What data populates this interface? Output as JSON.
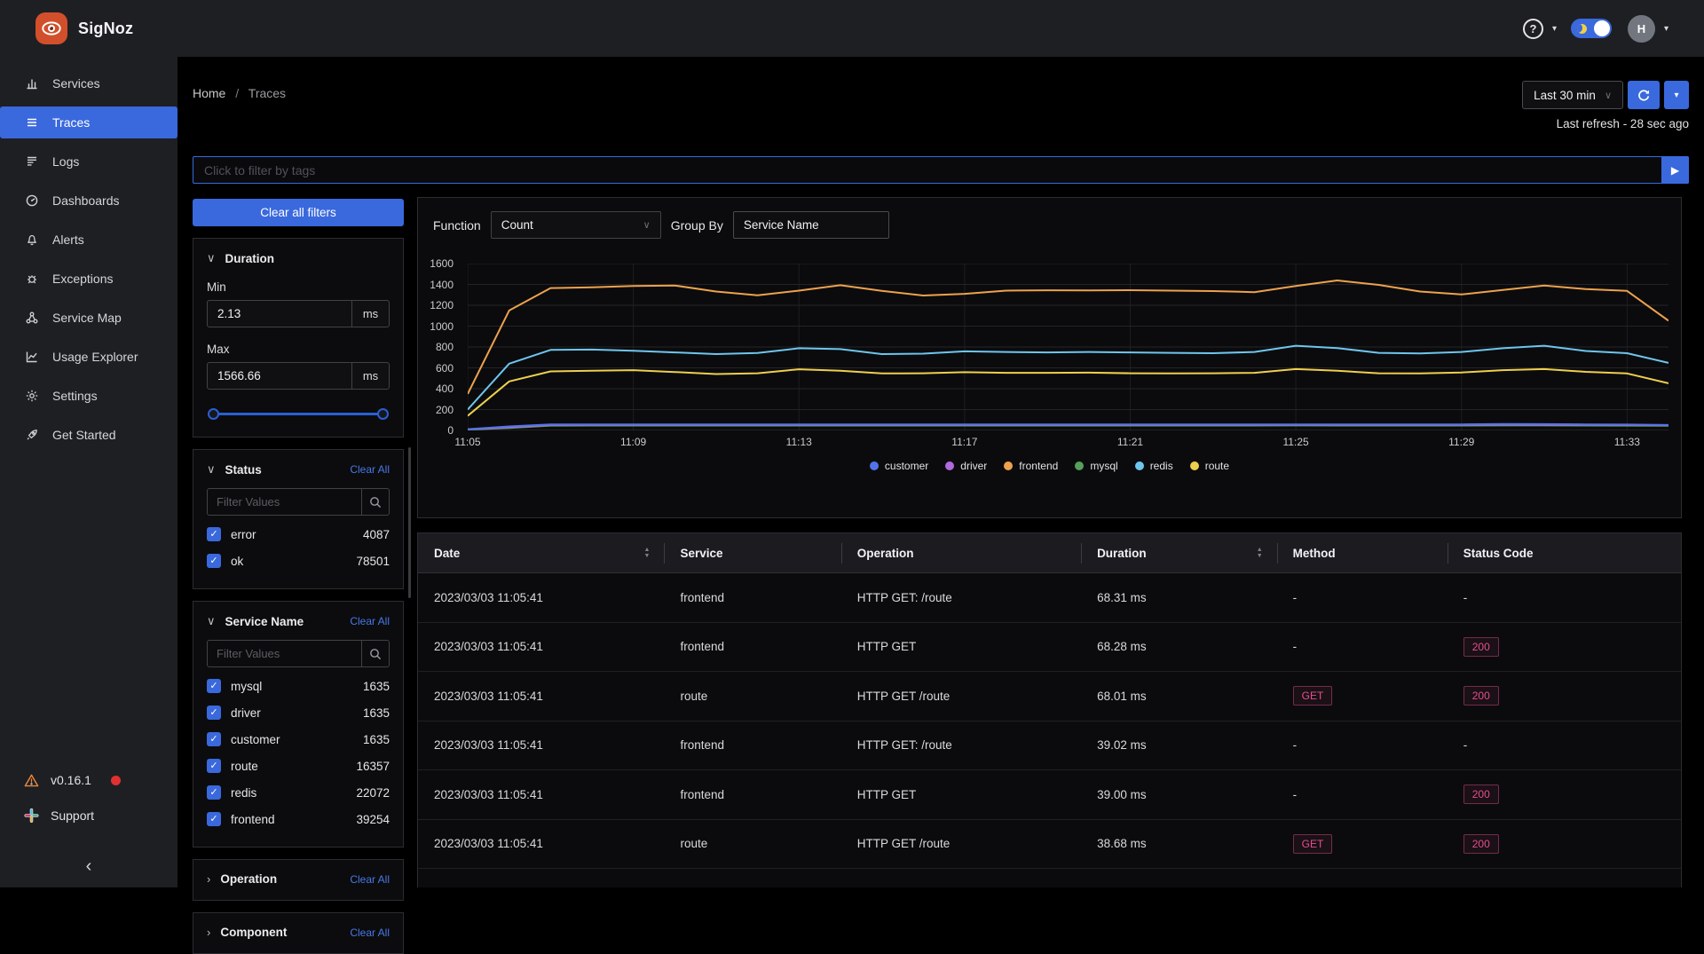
{
  "topbar": {
    "brand": "SigNoz",
    "avatar_initial": "H"
  },
  "sidebar": {
    "items": [
      {
        "label": "Services",
        "icon": "bar-chart",
        "active": false
      },
      {
        "label": "Traces",
        "icon": "list",
        "active": true
      },
      {
        "label": "Logs",
        "icon": "logs",
        "active": false
      },
      {
        "label": "Dashboards",
        "icon": "gauge",
        "active": false
      },
      {
        "label": "Alerts",
        "icon": "bell",
        "active": false
      },
      {
        "label": "Exceptions",
        "icon": "bug",
        "active": false
      },
      {
        "label": "Service Map",
        "icon": "graph",
        "active": false
      },
      {
        "label": "Usage Explorer",
        "icon": "trend",
        "active": false
      },
      {
        "label": "Settings",
        "icon": "gear",
        "active": false
      },
      {
        "label": "Get Started",
        "icon": "rocket",
        "active": false
      }
    ],
    "version": "v0.16.1",
    "support_label": "Support"
  },
  "header": {
    "breadcrumb": [
      "Home",
      "Traces"
    ],
    "breadcrumb_separator": "/",
    "time_range": "Last 30 min",
    "last_refresh": "Last refresh - 28 sec ago"
  },
  "filterbar": {
    "placeholder": "Click to filter by tags"
  },
  "filters": {
    "clear_all_filters": "Clear all filters",
    "clear_all": "Clear All",
    "filter_placeholder": "Filter Values",
    "duration": {
      "title": "Duration",
      "min_label": "Min",
      "min_value": "2.13",
      "max_label": "Max",
      "max_value": "1566.66",
      "unit": "ms"
    },
    "status": {
      "title": "Status",
      "items": [
        {
          "label": "error",
          "count": "4087"
        },
        {
          "label": "ok",
          "count": "78501"
        }
      ]
    },
    "service_name": {
      "title": "Service Name",
      "items": [
        {
          "label": "mysql",
          "count": "1635"
        },
        {
          "label": "driver",
          "count": "1635"
        },
        {
          "label": "customer",
          "count": "1635"
        },
        {
          "label": "route",
          "count": "16357"
        },
        {
          "label": "redis",
          "count": "22072"
        },
        {
          "label": "frontend",
          "count": "39254"
        }
      ]
    },
    "collapsed_sections": [
      "Operation",
      "Component"
    ]
  },
  "graph": {
    "function_label": "Function",
    "function_value": "Count",
    "group_by_label": "Group By",
    "group_by_value": "Service Name"
  },
  "chart_data": {
    "type": "line",
    "title": "",
    "xlabel": "",
    "ylabel": "",
    "ylim": [
      0,
      1600
    ],
    "yticks": [
      0,
      200,
      400,
      600,
      800,
      1000,
      1200,
      1400,
      1600
    ],
    "x_ticks": [
      "11:05",
      "11:09",
      "11:13",
      "11:17",
      "11:21",
      "11:25",
      "11:29",
      "11:33"
    ],
    "x_tick_indices": [
      0,
      4,
      8,
      12,
      16,
      20,
      24,
      28
    ],
    "x_point_count": 30,
    "grid": true,
    "legend_position": "bottom",
    "series": [
      {
        "name": "customer",
        "color": "#5273e8",
        "values": [
          12,
          38,
          57,
          58,
          58,
          58,
          58,
          58,
          58,
          58,
          58,
          58,
          58,
          58,
          58,
          58,
          58,
          58,
          58,
          58,
          58,
          58,
          58,
          58,
          58,
          62,
          60,
          58,
          56,
          52
        ]
      },
      {
        "name": "driver",
        "color": "#b169de",
        "values": [
          10,
          30,
          52,
          53,
          53,
          53,
          53,
          53,
          53,
          53,
          53,
          53,
          53,
          53,
          53,
          53,
          53,
          53,
          53,
          53,
          54,
          53,
          53,
          53,
          53,
          55,
          54,
          53,
          52,
          50
        ]
      },
      {
        "name": "frontend",
        "color": "#eda24d",
        "values": [
          350,
          1150,
          1365,
          1372,
          1385,
          1390,
          1332,
          1296,
          1340,
          1392,
          1338,
          1294,
          1310,
          1340,
          1344,
          1342,
          1345,
          1340,
          1336,
          1326,
          1385,
          1438,
          1396,
          1332,
          1304,
          1346,
          1390,
          1355,
          1338,
          1052
        ]
      },
      {
        "name": "mysql",
        "color": "#55a05a",
        "values": [
          8,
          24,
          46,
          47,
          47,
          47,
          47,
          47,
          47,
          47,
          47,
          47,
          47,
          47,
          47,
          47,
          47,
          47,
          47,
          47,
          48,
          47,
          47,
          47,
          47,
          48,
          48,
          47,
          46,
          44
        ]
      },
      {
        "name": "redis",
        "color": "#6ec6ee",
        "values": [
          200,
          640,
          772,
          775,
          764,
          748,
          732,
          742,
          788,
          780,
          732,
          736,
          758,
          752,
          748,
          752,
          748,
          744,
          740,
          752,
          812,
          790,
          744,
          738,
          752,
          788,
          812,
          762,
          740,
          648
        ]
      },
      {
        "name": "route",
        "color": "#eecf4e",
        "values": [
          140,
          470,
          566,
          572,
          578,
          560,
          540,
          548,
          586,
          572,
          546,
          548,
          558,
          552,
          552,
          554,
          548,
          546,
          548,
          552,
          588,
          572,
          548,
          546,
          556,
          578,
          588,
          562,
          546,
          452
        ]
      }
    ]
  },
  "table": {
    "columns": [
      {
        "label": "Date",
        "sortable": true
      },
      {
        "label": "Service",
        "sortable": false
      },
      {
        "label": "Operation",
        "sortable": false
      },
      {
        "label": "Duration",
        "sortable": true
      },
      {
        "label": "Method",
        "sortable": false
      },
      {
        "label": "Status Code",
        "sortable": false
      }
    ],
    "rows": [
      [
        "2023/03/03 11:05:41",
        "frontend",
        "HTTP GET: /route",
        "68.31 ms",
        "-",
        "-"
      ],
      [
        "2023/03/03 11:05:41",
        "frontend",
        "HTTP GET",
        "68.28 ms",
        "-",
        "200"
      ],
      [
        "2023/03/03 11:05:41",
        "route",
        "HTTP GET /route",
        "68.01 ms",
        "GET",
        "200"
      ],
      [
        "2023/03/03 11:05:41",
        "frontend",
        "HTTP GET: /route",
        "39.02 ms",
        "-",
        "-"
      ],
      [
        "2023/03/03 11:05:41",
        "frontend",
        "HTTP GET",
        "39.00 ms",
        "-",
        "200"
      ],
      [
        "2023/03/03 11:05:41",
        "route",
        "HTTP GET /route",
        "38.68 ms",
        "GET",
        "200"
      ]
    ]
  },
  "colors": {
    "accent_blue": "#3a69dd",
    "link_blue": "#4878e8",
    "badge_pink": "#e34f8f",
    "warning_orange": "#e8883c",
    "version_dot_red": "#e03131",
    "logo_orange": "#d24f2b"
  }
}
